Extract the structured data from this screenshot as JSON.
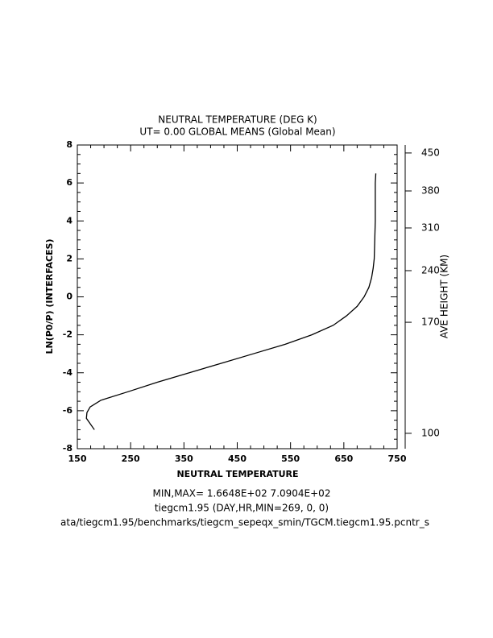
{
  "chart_data": {
    "type": "line",
    "title": "NEUTRAL TEMPERATURE (DEG K)",
    "subtitle": "UT= 0.00 GLOBAL MEANS (Global Mean)",
    "x_label": "NEUTRAL TEMPERATURE",
    "y_label": "LN(P0/P) (INTERFACES)",
    "y2_label": "AVE HEIGHT (KM)",
    "xlim": [
      150,
      750
    ],
    "xticks": [
      150,
      250,
      350,
      450,
      550,
      650,
      750
    ],
    "x_minor_ticks": [
      175,
      200,
      225,
      275,
      300,
      325,
      375,
      400,
      425,
      475,
      500,
      525,
      575,
      600,
      625,
      675,
      700,
      725
    ],
    "ylim": [
      -8,
      8
    ],
    "yticks": [
      -8,
      -6,
      -4,
      -2,
      0,
      2,
      4,
      6,
      8
    ],
    "y_minor_ticks": [
      -7.5,
      -7,
      -6.5,
      -5.5,
      -5,
      -4.5,
      -3.5,
      -3,
      -2.5,
      -1.5,
      -1,
      -0.5,
      0.5,
      1,
      1.5,
      2.5,
      3,
      3.5,
      4.5,
      5,
      5.5,
      6.5,
      7,
      7.5
    ],
    "y2_axis": {
      "heights": [
        100,
        170,
        240,
        310,
        380,
        450
      ],
      "at_ln_p": [
        -7.19,
        -1.34,
        1.38,
        3.63,
        5.58,
        7.58
      ]
    },
    "series": [
      {
        "name": "temperature",
        "color": "#000000",
        "x": [
          182,
          167,
          168,
          174,
          194,
          245,
          300,
          360,
          420,
          480,
          540,
          590,
          630,
          655,
          675,
          688,
          697,
          702,
          705,
          707,
          708,
          709,
          709,
          709,
          710
        ],
        "values": [
          -7.0,
          -6.4,
          -6.1,
          -5.8,
          -5.45,
          -5.0,
          -4.5,
          -4.0,
          -3.5,
          -3.0,
          -2.5,
          -2.0,
          -1.5,
          -1.0,
          -0.5,
          0.0,
          0.5,
          1.0,
          1.5,
          2.0,
          3.0,
          4.0,
          5.0,
          6.0,
          6.5
        ]
      }
    ],
    "footer": [
      "MIN,MAX=  1.6648E+02  7.0904E+02",
      "tiegcm1.95 (DAY,HR,MIN=269, 0, 0)",
      "ata/tiegcm1.95/benchmarks/tiegcm_sepeqx_smin/TGCM.tiegcm1.95.pcntr_s"
    ]
  }
}
